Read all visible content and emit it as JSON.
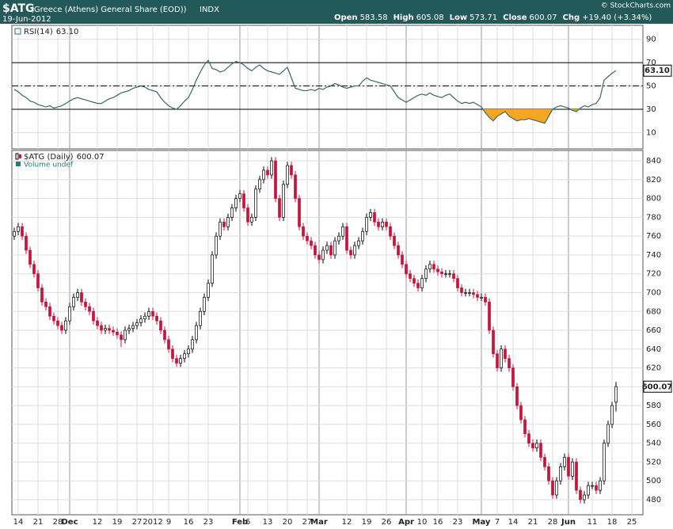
{
  "header": {
    "symbol": "$ATG",
    "name": "(Greece (Athens) General Share (EOD))",
    "exchange": "INDX",
    "date": "19-Jun-2012",
    "copyright": "© StockCharts.com",
    "quote": [
      {
        "label": "Open",
        "value": 583.58
      },
      {
        "label": "High",
        "value": 605.08
      },
      {
        "label": "Low",
        "value": 573.71
      },
      {
        "label": "Close",
        "value": 600.07
      },
      {
        "label": "Chg",
        "value": "+19.40 (+3.34%)"
      }
    ]
  },
  "chart_data": [
    {
      "type": "line",
      "name": "RSI(14)",
      "last_label": "63.10",
      "color": "#3b6868",
      "oversold_color": "#f5a623",
      "levels": {
        "overbought": 70,
        "midline": 50,
        "oversold": 30
      },
      "ylim": [
        -4,
        102
      ],
      "yticks": [
        10,
        30,
        50,
        70,
        90
      ],
      "grid": true,
      "values": [
        47,
        45,
        42,
        40,
        37,
        36,
        34,
        33,
        32,
        33,
        31,
        32,
        33,
        35,
        37,
        39,
        40,
        39,
        38,
        37,
        36,
        35,
        35,
        37,
        39,
        40,
        42,
        44,
        45,
        46,
        48,
        49,
        50,
        49,
        47,
        46,
        45,
        40,
        36,
        33,
        31,
        30,
        33,
        37,
        40,
        47,
        55,
        62,
        68,
        72,
        65,
        64,
        62,
        63,
        66,
        69,
        71,
        70,
        68,
        65,
        63,
        66,
        68,
        65,
        63,
        62,
        61,
        60,
        63,
        66,
        57,
        48,
        47,
        46,
        46,
        47,
        46,
        48,
        47,
        49,
        50,
        52,
        51,
        49,
        48,
        49,
        50,
        50,
        54,
        57,
        55,
        54,
        53,
        52,
        51,
        50,
        45,
        40,
        38,
        36,
        38,
        40,
        42,
        43,
        42,
        44,
        42,
        41,
        40,
        42,
        43,
        40,
        37,
        35,
        36,
        35,
        36,
        34,
        32,
        27,
        23,
        20,
        24,
        26,
        28,
        24,
        22,
        20,
        21,
        21,
        22,
        21,
        20,
        19,
        18,
        24,
        30,
        32,
        33,
        32,
        31,
        29,
        28,
        31,
        33,
        32,
        34,
        35,
        40,
        55,
        58,
        61,
        63.1
      ]
    },
    {
      "type": "candlestick",
      "name": "$ATG (Daily)",
      "volume_label": "Volume undef",
      "up_color": "#ffffff",
      "down_color": "#c8143c",
      "ylim": [
        464,
        851
      ],
      "yticks": [
        480,
        500,
        520,
        540,
        560,
        580,
        600,
        620,
        640,
        660,
        680,
        700,
        720,
        740,
        760,
        780,
        800,
        820,
        840
      ],
      "grid": true,
      "xlim": [
        -0.6,
        158.8
      ],
      "xticks": [
        {
          "value": 1,
          "label": "14"
        },
        {
          "value": 6,
          "label": "21"
        },
        {
          "value": 11,
          "label": "28"
        },
        {
          "value": 14,
          "label": "Dec"
        },
        {
          "value": 21,
          "label": "12"
        },
        {
          "value": 26,
          "label": "19"
        },
        {
          "value": 31,
          "label": "27"
        },
        {
          "value": 35,
          "label": "2012"
        },
        {
          "value": 39,
          "label": "9"
        },
        {
          "value": 44,
          "label": "16"
        },
        {
          "value": 49,
          "label": "23"
        },
        {
          "value": 57,
          "label": "Feb"
        },
        {
          "value": 59,
          "label": "6"
        },
        {
          "value": 64,
          "label": "13"
        },
        {
          "value": 69,
          "label": "20"
        },
        {
          "value": 74,
          "label": "27"
        },
        {
          "value": 77,
          "label": "Mar"
        },
        {
          "value": 84,
          "label": "12"
        },
        {
          "value": 89,
          "label": "19"
        },
        {
          "value": 94,
          "label": "26"
        },
        {
          "value": 99,
          "label": "Apr"
        },
        {
          "value": 103,
          "label": "10"
        },
        {
          "value": 107,
          "label": "16"
        },
        {
          "value": 112,
          "label": "23"
        },
        {
          "value": 118,
          "label": "May"
        },
        {
          "value": 122,
          "label": "7"
        },
        {
          "value": 126,
          "label": "14"
        },
        {
          "value": 131,
          "label": "21"
        },
        {
          "value": 136,
          "label": "28"
        },
        {
          "value": 140,
          "label": "Jun"
        },
        {
          "value": 146,
          "label": "11"
        },
        {
          "value": 151,
          "label": "18"
        },
        {
          "value": 156,
          "label": "25"
        }
      ],
      "ohlc": [
        [
          760,
          769,
          756,
          765
        ],
        [
          765,
          774,
          761,
          770
        ],
        [
          770,
          774,
          756,
          760
        ],
        [
          760,
          764,
          741,
          745
        ],
        [
          745,
          749,
          726,
          730
        ],
        [
          730,
          734,
          716,
          720
        ],
        [
          720,
          724,
          701,
          705
        ],
        [
          705,
          709,
          686,
          690
        ],
        [
          690,
          694,
          681,
          685
        ],
        [
          685,
          689,
          671,
          675
        ],
        [
          675,
          679,
          666,
          670
        ],
        [
          670,
          674,
          661,
          665
        ],
        [
          665,
          669,
          656,
          660
        ],
        [
          660,
          674,
          656,
          670
        ],
        [
          670,
          689,
          666,
          685
        ],
        [
          685,
          699,
          681,
          695
        ],
        [
          695,
          704,
          691,
          700
        ],
        [
          700,
          704,
          686,
          690
        ],
        [
          690,
          694,
          681,
          685
        ],
        [
          685,
          689,
          676,
          680
        ],
        [
          680,
          684,
          666,
          670
        ],
        [
          670,
          674,
          661,
          665
        ],
        [
          665,
          669,
          656,
          660
        ],
        [
          660,
          666,
          656,
          662
        ],
        [
          662,
          666,
          656,
          660
        ],
        [
          660,
          664,
          654,
          658
        ],
        [
          658,
          662,
          651,
          655
        ],
        [
          655,
          659,
          642,
          650
        ],
        [
          650,
          664,
          646,
          660
        ],
        [
          660,
          666,
          656,
          662
        ],
        [
          662,
          669,
          658,
          665
        ],
        [
          665,
          672,
          661,
          668
        ],
        [
          668,
          676,
          664,
          672
        ],
        [
          672,
          679,
          668,
          675
        ],
        [
          675,
          684,
          671,
          680
        ],
        [
          680,
          684,
          671,
          675
        ],
        [
          675,
          679,
          666,
          670
        ],
        [
          670,
          674,
          656,
          660
        ],
        [
          660,
          664,
          646,
          650
        ],
        [
          650,
          654,
          636,
          640
        ],
        [
          640,
          644,
          626,
          630
        ],
        [
          630,
          634,
          621,
          625
        ],
        [
          625,
          634,
          621,
          630
        ],
        [
          630,
          639,
          626,
          635
        ],
        [
          635,
          644,
          631,
          640
        ],
        [
          640,
          654,
          636,
          650
        ],
        [
          650,
          669,
          646,
          665
        ],
        [
          665,
          684,
          661,
          680
        ],
        [
          680,
          699,
          676,
          695
        ],
        [
          695,
          714,
          691,
          710
        ],
        [
          710,
          744,
          706,
          740
        ],
        [
          740,
          764,
          736,
          760
        ],
        [
          760,
          779,
          756,
          775
        ],
        [
          775,
          779,
          766,
          770
        ],
        [
          770,
          784,
          766,
          780
        ],
        [
          780,
          794,
          776,
          790
        ],
        [
          790,
          804,
          786,
          800
        ],
        [
          800,
          809,
          796,
          805
        ],
        [
          805,
          809,
          786,
          790
        ],
        [
          790,
          794,
          771,
          775
        ],
        [
          775,
          784,
          771,
          780
        ],
        [
          780,
          814,
          776,
          810
        ],
        [
          810,
          824,
          806,
          820
        ],
        [
          820,
          834,
          816,
          830
        ],
        [
          830,
          834,
          821,
          825
        ],
        [
          825,
          844,
          821,
          840
        ],
        [
          840,
          844,
          796,
          800
        ],
        [
          800,
          804,
          776,
          780
        ],
        [
          780,
          819,
          776,
          815
        ],
        [
          815,
          839,
          811,
          835
        ],
        [
          835,
          839,
          821,
          825
        ],
        [
          825,
          829,
          796,
          800
        ],
        [
          800,
          804,
          766,
          770
        ],
        [
          770,
          774,
          756,
          760
        ],
        [
          760,
          764,
          751,
          755
        ],
        [
          755,
          759,
          746,
          750
        ],
        [
          750,
          754,
          736,
          740
        ],
        [
          740,
          744,
          731,
          735
        ],
        [
          735,
          749,
          731,
          745
        ],
        [
          745,
          754,
          741,
          750
        ],
        [
          750,
          754,
          736,
          740
        ],
        [
          740,
          759,
          736,
          755
        ],
        [
          755,
          764,
          751,
          760
        ],
        [
          760,
          774,
          756,
          770
        ],
        [
          770,
          774,
          741,
          745
        ],
        [
          745,
          749,
          736,
          740
        ],
        [
          740,
          754,
          736,
          750
        ],
        [
          750,
          759,
          746,
          755
        ],
        [
          755,
          769,
          751,
          765
        ],
        [
          765,
          784,
          761,
          780
        ],
        [
          780,
          789,
          776,
          785
        ],
        [
          785,
          789,
          771,
          775
        ],
        [
          775,
          779,
          766,
          770
        ],
        [
          770,
          779,
          766,
          775
        ],
        [
          775,
          779,
          766,
          770
        ],
        [
          770,
          774,
          756,
          760
        ],
        [
          760,
          764,
          746,
          750
        ],
        [
          750,
          754,
          736,
          740
        ],
        [
          740,
          744,
          726,
          730
        ],
        [
          730,
          734,
          716,
          720
        ],
        [
          720,
          724,
          711,
          715
        ],
        [
          715,
          719,
          706,
          710
        ],
        [
          710,
          714,
          701,
          705
        ],
        [
          705,
          719,
          701,
          715
        ],
        [
          715,
          729,
          711,
          725
        ],
        [
          725,
          734,
          721,
          730
        ],
        [
          730,
          734,
          721,
          725
        ],
        [
          725,
          729,
          718,
          722
        ],
        [
          722,
          726,
          716,
          720
        ],
        [
          720,
          724,
          716,
          720
        ],
        [
          720,
          724,
          716,
          720
        ],
        [
          720,
          724,
          711,
          715
        ],
        [
          715,
          719,
          701,
          705
        ],
        [
          705,
          709,
          696,
          700
        ],
        [
          700,
          704,
          696,
          700
        ],
        [
          700,
          704,
          696,
          700
        ],
        [
          700,
          704,
          694,
          698
        ],
        [
          698,
          702,
          691,
          695
        ],
        [
          695,
          699,
          691,
          695
        ],
        [
          695,
          699,
          686,
          690
        ],
        [
          690,
          694,
          656,
          660
        ],
        [
          660,
          664,
          631,
          635
        ],
        [
          635,
          639,
          616,
          620
        ],
        [
          620,
          644,
          616,
          640
        ],
        [
          640,
          644,
          626,
          630
        ],
        [
          630,
          634,
          616,
          620
        ],
        [
          620,
          624,
          596,
          600
        ],
        [
          600,
          604,
          576,
          580
        ],
        [
          580,
          584,
          561,
          565
        ],
        [
          565,
          569,
          546,
          550
        ],
        [
          550,
          554,
          536,
          540
        ],
        [
          540,
          544,
          531,
          535
        ],
        [
          535,
          544,
          531,
          540
        ],
        [
          540,
          544,
          521,
          525
        ],
        [
          525,
          529,
          511,
          515
        ],
        [
          515,
          519,
          496,
          500
        ],
        [
          500,
          504,
          481,
          485
        ],
        [
          485,
          504,
          481,
          500
        ],
        [
          500,
          519,
          496,
          515
        ],
        [
          515,
          529,
          511,
          525
        ],
        [
          525,
          529,
          501,
          505
        ],
        [
          505,
          524,
          501,
          520
        ],
        [
          520,
          524,
          486,
          490
        ],
        [
          490,
          494,
          476,
          480
        ],
        [
          480,
          489,
          476,
          485
        ],
        [
          485,
          499,
          481,
          495
        ],
        [
          495,
          499,
          491,
          495
        ],
        [
          495,
          499,
          486,
          490
        ],
        [
          490,
          504,
          486,
          500
        ],
        [
          500,
          544,
          496,
          540
        ],
        [
          540,
          564,
          536,
          560
        ],
        [
          560,
          584,
          556,
          580
        ],
        [
          583.58,
          605.08,
          573.71,
          600.07
        ]
      ]
    }
  ]
}
